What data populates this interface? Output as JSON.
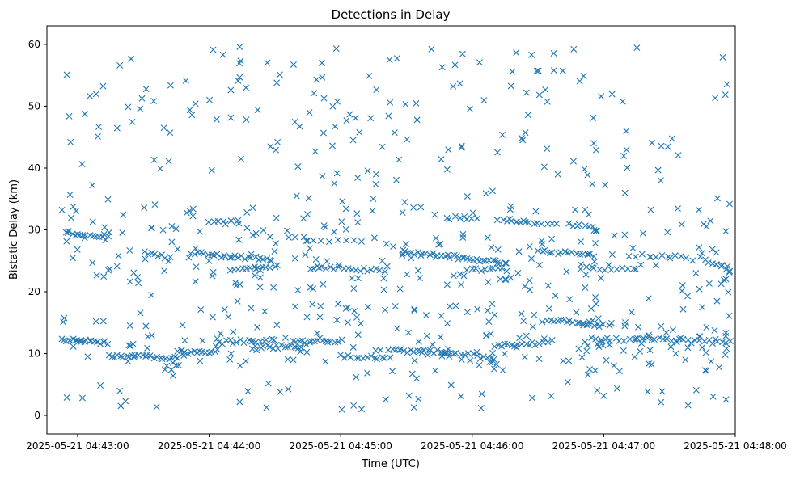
{
  "chart_data": {
    "type": "scatter",
    "title": "Detections in Delay",
    "xlabel": "Time (UTC)",
    "ylabel": "Bistatic Delay (km)",
    "marker": "x",
    "series_color": "#1f77b4",
    "x_unit": "seconds since 2025-05-21 04:43:00 UTC",
    "xlim": [
      -14,
      300
    ],
    "ylim": [
      -3,
      63
    ],
    "x_ticks": [
      0,
      60,
      120,
      180,
      240,
      300
    ],
    "x_tick_labels": [
      "2025-05-21 04:43:00",
      "2025-05-21 04:44:00",
      "2025-05-21 04:45:00",
      "2025-05-21 04:46:00",
      "2025-05-21 04:47:00",
      "2025-05-21 04:48:00"
    ],
    "y_ticks": [
      0,
      10,
      20,
      30,
      40,
      50,
      60
    ],
    "y_tick_labels": [
      "0",
      "10",
      "20",
      "30",
      "40",
      "50",
      "60"
    ],
    "grid": false,
    "legend": "none",
    "tracks": [
      {
        "t0": -7,
        "t1": 2,
        "d0": 12.2,
        "d1": 12.0,
        "n": 10
      },
      {
        "t0": 2,
        "t1": 14,
        "d0": 12.0,
        "d1": 11.8,
        "n": 12
      },
      {
        "t0": 14,
        "t1": 46,
        "d0": 9.6,
        "d1": 9.3,
        "n": 24
      },
      {
        "t0": 46,
        "t1": 64,
        "d0": 10.2,
        "d1": 10.4,
        "n": 14
      },
      {
        "t0": 64,
        "t1": 90,
        "d0": 11.8,
        "d1": 12.2,
        "n": 16
      },
      {
        "t0": 80,
        "t1": 104,
        "d0": 11.0,
        "d1": 11.2,
        "n": 16
      },
      {
        "t0": 98,
        "t1": 120,
        "d0": 11.8,
        "d1": 12.0,
        "n": 16
      },
      {
        "t0": 120,
        "t1": 142,
        "d0": 9.5,
        "d1": 9.3,
        "n": 14
      },
      {
        "t0": 142,
        "t1": 170,
        "d0": 10.5,
        "d1": 10.2,
        "n": 20
      },
      {
        "t0": 166,
        "t1": 182,
        "d0": 9.8,
        "d1": 10.0,
        "n": 10
      },
      {
        "t0": 182,
        "t1": 190,
        "d0": 9.5,
        "d1": 9.3,
        "n": 6
      },
      {
        "t0": 190,
        "t1": 214,
        "d0": 11.2,
        "d1": 11.7,
        "n": 16
      },
      {
        "t0": 214,
        "t1": 240,
        "d0": 15.5,
        "d1": 14.5,
        "n": 18
      },
      {
        "t0": 234,
        "t1": 254,
        "d0": 12.3,
        "d1": 12.1,
        "n": 10
      },
      {
        "t0": 254,
        "t1": 278,
        "d0": 12.4,
        "d1": 12.3,
        "n": 14
      },
      {
        "t0": 280,
        "t1": 298,
        "d0": 12.0,
        "d1": 11.8,
        "n": 10
      },
      {
        "t0": -5,
        "t1": 14,
        "d0": 29.6,
        "d1": 29.0,
        "n": 14
      },
      {
        "t0": 30,
        "t1": 42,
        "d0": 26.5,
        "d1": 25.5,
        "n": 8
      },
      {
        "t0": 52,
        "t1": 88,
        "d0": 26.2,
        "d1": 25.2,
        "n": 26
      },
      {
        "t0": 60,
        "t1": 74,
        "d0": 31.2,
        "d1": 31.2,
        "n": 8
      },
      {
        "t0": 70,
        "t1": 90,
        "d0": 23.5,
        "d1": 24.0,
        "n": 12
      },
      {
        "t0": 96,
        "t1": 130,
        "d0": 28.8,
        "d1": 28.0,
        "n": 10
      },
      {
        "t0": 106,
        "t1": 138,
        "d0": 23.8,
        "d1": 23.5,
        "n": 18
      },
      {
        "t0": 148,
        "t1": 196,
        "d0": 26.4,
        "d1": 24.8,
        "n": 36
      },
      {
        "t0": 168,
        "t1": 182,
        "d0": 32.0,
        "d1": 31.8,
        "n": 8
      },
      {
        "t0": 178,
        "t1": 196,
        "d0": 23.7,
        "d1": 23.5,
        "n": 10
      },
      {
        "t0": 192,
        "t1": 218,
        "d0": 31.5,
        "d1": 31.0,
        "n": 14
      },
      {
        "t0": 210,
        "t1": 236,
        "d0": 26.5,
        "d1": 26.0,
        "n": 16
      },
      {
        "t0": 224,
        "t1": 236,
        "d0": 31.0,
        "d1": 30.0,
        "n": 6
      },
      {
        "t0": 230,
        "t1": 254,
        "d0": 23.8,
        "d1": 23.5,
        "n": 10
      },
      {
        "t0": 252,
        "t1": 278,
        "d0": 25.9,
        "d1": 25.5,
        "n": 10
      },
      {
        "t0": 284,
        "t1": 298,
        "d0": 25.5,
        "d1": 23.5,
        "n": 8
      }
    ],
    "clutter_count": 640
  }
}
